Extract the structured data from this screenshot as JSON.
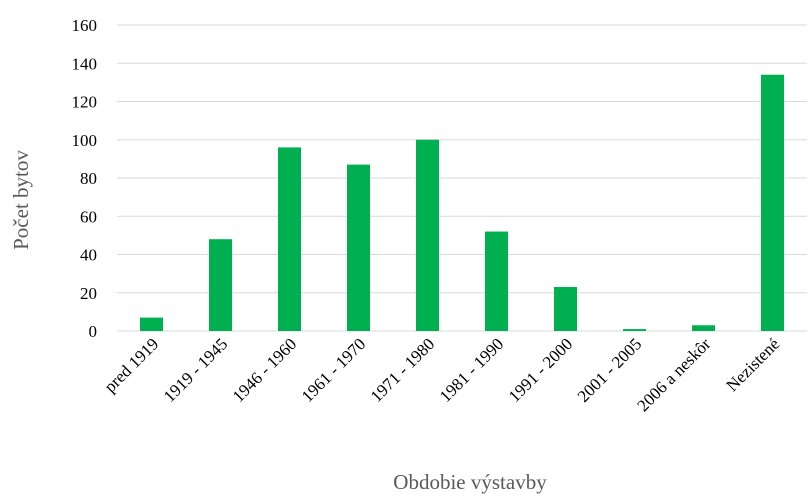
{
  "chart_data": {
    "type": "bar",
    "title": "",
    "xlabel": "Obdobie  výstavby",
    "ylabel": "Počet bytov",
    "categories": [
      "pred 1919",
      "1919 - 1945",
      "1946 - 1960",
      "1961 - 1970",
      "1971 - 1980",
      "1981 - 1990",
      "1991 - 2000",
      "2001 - 2005",
      "2006 a neskôr",
      "Nezistené"
    ],
    "values": [
      7,
      48,
      96,
      87,
      100,
      52,
      23,
      1,
      3,
      134
    ],
    "ylim": [
      0,
      160
    ],
    "yticks": [
      0,
      20,
      40,
      60,
      80,
      100,
      120,
      140,
      160
    ],
    "grid": true,
    "legend": "none",
    "colors": {
      "bar": "#00B050",
      "grid": "#D9D9D9",
      "axis_title": "#595959"
    }
  }
}
